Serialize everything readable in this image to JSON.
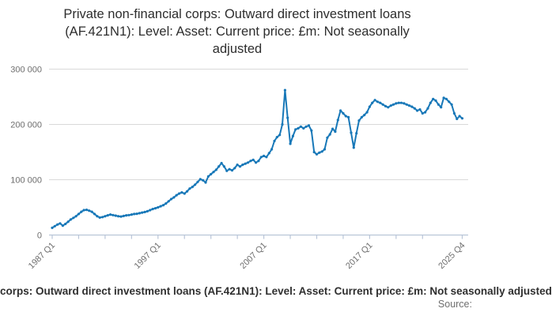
{
  "title_lines": [
    "Private non-financial corps: Outward direct investment loans",
    "(AF.421N1): Level: Asset: Current price: £m: Not seasonally",
    "adjusted"
  ],
  "footer": {
    "caption": "corps: Outward direct investment loans (AF.421N1): Level: Asset: Current price: £m: Not seasonally adjusted",
    "source_label": "Source:"
  },
  "colors": {
    "line": "#1878b8",
    "grid": "#d9d9d9",
    "axis": "#b9c5d8",
    "title_text": "#2d2d2d",
    "tick_text": "#6e6e6e",
    "caption_text": "#2f2f2f",
    "source_text": "#6e6e6e"
  },
  "chart_data": {
    "type": "line",
    "title": "Private non-financial corps: Outward direct investment loans (AF.421N1): Level: Asset: Current price: £m: Not seasonally adjusted",
    "xlabel": "",
    "ylabel": "",
    "unit": "£m",
    "frequency": "quarterly",
    "start_period": "1987 Q1",
    "end_period": "2025 Q4",
    "ylim": [
      0,
      300000
    ],
    "grid": "horizontal-only",
    "legend": "none",
    "y_ticks": [
      {
        "value": 0,
        "label": "0"
      },
      {
        "value": 100000,
        "label": "100 000"
      },
      {
        "value": 200000,
        "label": "200 000"
      },
      {
        "value": 300000,
        "label": "300 000"
      }
    ],
    "x_tick_quarters": [
      0,
      10,
      20,
      30,
      40,
      50,
      60,
      70,
      80,
      90,
      100,
      110,
      120,
      130,
      140,
      155
    ],
    "x_axis_labels": [
      {
        "q": 0,
        "label": "1987 Q1"
      },
      {
        "q": 40,
        "label": "1997 Q1"
      },
      {
        "q": 80,
        "label": "2007 Q1"
      },
      {
        "q": 120,
        "label": "2017 Q1"
      },
      {
        "q": 155,
        "label": "2025 Q4"
      }
    ],
    "values": [
      13000,
      16000,
      19000,
      21000,
      17000,
      20000,
      24000,
      28000,
      31000,
      34000,
      38000,
      42000,
      45000,
      45500,
      44000,
      42000,
      38000,
      34000,
      31500,
      32500,
      34000,
      35500,
      37000,
      36000,
      35000,
      34000,
      33500,
      34500,
      35500,
      36000,
      37000,
      38000,
      38500,
      39500,
      40500,
      41500,
      43000,
      45000,
      47000,
      48500,
      50000,
      52000,
      54000,
      57000,
      61000,
      65000,
      68000,
      72000,
      75000,
      77000,
      75000,
      79000,
      84000,
      87000,
      91000,
      96000,
      101000,
      99000,
      95000,
      106000,
      110000,
      114000,
      118000,
      124000,
      130000,
      124000,
      116000,
      119000,
      117000,
      121000,
      127000,
      124000,
      127000,
      129000,
      131000,
      134000,
      136000,
      131000,
      134000,
      141000,
      143000,
      141000,
      148000,
      155000,
      170000,
      177000,
      181000,
      200000,
      262000,
      212000,
      165000,
      179000,
      191000,
      193000,
      196000,
      193000,
      196000,
      198000,
      189000,
      150000,
      146000,
      149000,
      151000,
      155000,
      176000,
      182000,
      192000,
      187000,
      208000,
      225000,
      220000,
      215000,
      213000,
      185000,
      158000,
      184000,
      207000,
      213000,
      217000,
      222000,
      232000,
      239000,
      244000,
      241000,
      239000,
      236000,
      233000,
      231000,
      234000,
      236000,
      238000,
      239000,
      239000,
      238000,
      236000,
      234000,
      232000,
      229000,
      225000,
      227000,
      220000,
      222000,
      229000,
      239000,
      246000,
      243000,
      236000,
      231000,
      248000,
      246000,
      241000,
      236000,
      220000,
      210000,
      215000,
      211000
    ]
  }
}
